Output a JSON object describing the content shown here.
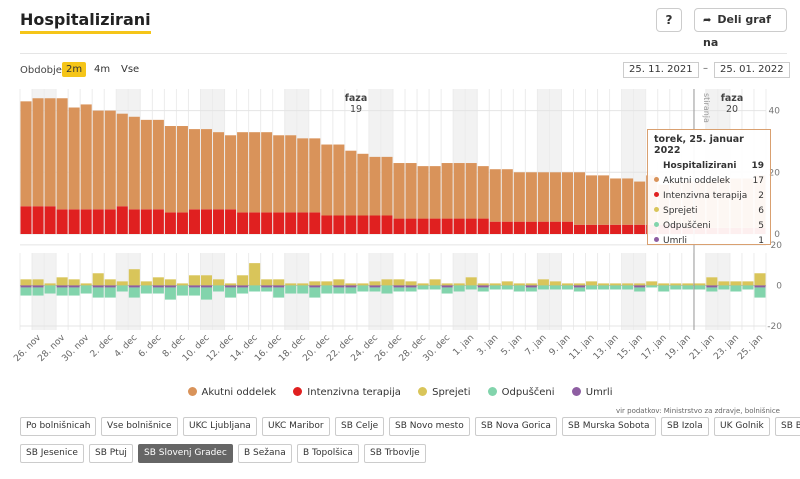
{
  "header": {
    "title": "Hospitalizirani",
    "help_label": "?",
    "share_label": "Deli graf na"
  },
  "controls": {
    "period_label": "Obdobje",
    "period_options": [
      "2m",
      "4m",
      "Vse"
    ],
    "active_period": "2m",
    "date_from": "25. 11. 2021",
    "date_separator": "–",
    "date_to": "25. 01. 2022"
  },
  "chart_data": {
    "type": "bar",
    "title": "Hospitalizirani",
    "dates": [
      "25. nov",
      "26. nov",
      "27. nov",
      "28. nov",
      "29. nov",
      "30. nov",
      "1. dec",
      "2. dec",
      "3. dec",
      "4. dec",
      "5. dec",
      "6. dec",
      "7. dec",
      "8. dec",
      "9. dec",
      "10. dec",
      "11. dec",
      "12. dec",
      "13. dec",
      "14. dec",
      "15. dec",
      "16. dec",
      "17. dec",
      "18. dec",
      "19. dec",
      "20. dec",
      "21. dec",
      "22. dec",
      "23. dec",
      "24. dec",
      "25. dec",
      "26. dec",
      "27. dec",
      "28. dec",
      "29. dec",
      "30. dec",
      "31. dec",
      "1. jan",
      "2. jan",
      "3. jan",
      "4. jan",
      "5. jan",
      "6. jan",
      "7. jan",
      "8. jan",
      "9. jan",
      "10. jan",
      "11. jan",
      "12. jan",
      "13. jan",
      "14. jan",
      "15. jan",
      "16. jan",
      "17. jan",
      "18. jan",
      "19. jan",
      "20. jan",
      "21. jan",
      "22. jan",
      "23. jan",
      "24. jan",
      "25. jan"
    ],
    "x_tick_labels": [
      "26. nov",
      "28. nov",
      "30. nov",
      "2. dec",
      "4. dec",
      "6. dec",
      "8. dec",
      "10. dec",
      "12. dec",
      "14. dec",
      "16. dec",
      "18. dec",
      "20. dec",
      "22. dec",
      "24. dec",
      "26. dec",
      "28. dec",
      "30. dec",
      "1. jan",
      "3. jan",
      "5. jan",
      "7. jan",
      "9. jan",
      "11. jan",
      "13. jan",
      "15. jan",
      "17. jan",
      "19. jan",
      "21. jan",
      "23. jan",
      "25. jan"
    ],
    "upper_panel": {
      "series": [
        {
          "name": "Intenzivna terapija",
          "color": "#e02020",
          "values": [
            9,
            9,
            9,
            8,
            8,
            8,
            8,
            8,
            9,
            8,
            8,
            8,
            7,
            7,
            8,
            8,
            8,
            8,
            7,
            7,
            7,
            7,
            7,
            7,
            7,
            6,
            6,
            6,
            6,
            6,
            6,
            5,
            5,
            5,
            5,
            5,
            5,
            5,
            5,
            4,
            4,
            4,
            4,
            4,
            4,
            4,
            3,
            3,
            3,
            3,
            3,
            3,
            3,
            3,
            3,
            2,
            2,
            2,
            2,
            2,
            2,
            2
          ]
        },
        {
          "name": "Akutni oddelek",
          "color": "#d9935a",
          "values": [
            34,
            35,
            35,
            36,
            33,
            34,
            32,
            32,
            30,
            30,
            29,
            29,
            28,
            28,
            26,
            26,
            25,
            24,
            26,
            26,
            26,
            25,
            25,
            24,
            24,
            23,
            23,
            21,
            20,
            19,
            19,
            18,
            18,
            17,
            17,
            18,
            18,
            18,
            17,
            17,
            17,
            16,
            16,
            16,
            16,
            16,
            17,
            16,
            16,
            15,
            15,
            14,
            16,
            13,
            14,
            15,
            15,
            15,
            16,
            16,
            16,
            17
          ]
        }
      ],
      "y_ticks": [
        0,
        20,
        40
      ],
      "ylim": [
        0,
        47
      ]
    },
    "lower_panel": {
      "series": [
        {
          "name": "Sprejeti",
          "color": "#d9c55a",
          "values": [
            3,
            3,
            1,
            4,
            3,
            1,
            6,
            3,
            2,
            8,
            2,
            4,
            3,
            1,
            5,
            5,
            3,
            1,
            5,
            11,
            3,
            3,
            1,
            1,
            2,
            2,
            3,
            1,
            1,
            2,
            3,
            3,
            2,
            1,
            3,
            1,
            1,
            4,
            1,
            1,
            2,
            1,
            1,
            3,
            2,
            1,
            1,
            2,
            1,
            1,
            1,
            1,
            2,
            1,
            1,
            1,
            1,
            4,
            2,
            2,
            2,
            6
          ]
        },
        {
          "name": "Odpuščeni",
          "color": "#82d4ac",
          "values": [
            -4,
            -4,
            -4,
            -4,
            -4,
            -4,
            -5,
            -5,
            -3,
            -5,
            -4,
            -3,
            -6,
            -5,
            -4,
            -6,
            -3,
            -5,
            -3,
            -3,
            -2,
            -5,
            -4,
            -4,
            -5,
            -4,
            -3,
            -3,
            -3,
            -2,
            -4,
            -2,
            -2,
            -2,
            -2,
            -3,
            -3,
            -2,
            -2,
            -2,
            -2,
            -3,
            -2,
            -2,
            -2,
            -2,
            -2,
            -2,
            -2,
            -2,
            -2,
            -2,
            -1,
            -3,
            -2,
            -2,
            -2,
            -2,
            -2,
            -3,
            -2,
            -5
          ]
        },
        {
          "name": "Umrli",
          "color": "#8e5ea2",
          "values": [
            -1,
            -1,
            0,
            -1,
            -1,
            0,
            -1,
            -1,
            0,
            -1,
            0,
            -1,
            -1,
            0,
            -1,
            -1,
            0,
            -1,
            -1,
            0,
            -1,
            -1,
            0,
            0,
            -1,
            0,
            -1,
            -1,
            0,
            -1,
            0,
            -1,
            -1,
            0,
            0,
            -1,
            0,
            0,
            -1,
            0,
            0,
            0,
            -1,
            0,
            0,
            0,
            -1,
            0,
            0,
            0,
            0,
            -1,
            0,
            0,
            0,
            0,
            0,
            -1,
            0,
            0,
            0,
            -1
          ]
        }
      ],
      "y_ticks": [
        20,
        0,
        -20
      ],
      "ylim": [
        -22,
        16
      ]
    },
    "phase_labels": [
      {
        "line1": "faza",
        "line2": "19"
      },
      {
        "line1": "faza",
        "line2": "20"
      }
    ],
    "marker_label": "stiranja",
    "legend": [
      "Akutni oddelek",
      "Intenzivna terapija",
      "Sprejeti",
      "Odpuščeni",
      "Umrli"
    ]
  },
  "tooltip": {
    "date": "torek, 25. januar 2022",
    "rows": [
      {
        "label": "Hospitalizirani",
        "value": "19",
        "color": "",
        "bold": true
      },
      {
        "label": "Akutni oddelek",
        "value": "17",
        "color": "#d9935a",
        "bold": false
      },
      {
        "label": "Intenzivna terapija",
        "value": "2",
        "color": "#e02020",
        "bold": false
      },
      {
        "label": "Sprejeti",
        "value": "6",
        "color": "#d9c55a",
        "bold": false
      },
      {
        "label": "Odpuščeni",
        "value": "5",
        "color": "#82d4ac",
        "bold": false
      },
      {
        "label": "Umrli",
        "value": "1",
        "color": "#8e5ea2",
        "bold": false
      }
    ]
  },
  "legend": [
    {
      "label": "Akutni oddelek",
      "color": "#d9935a"
    },
    {
      "label": "Intenzivna terapija",
      "color": "#e02020"
    },
    {
      "label": "Sprejeti",
      "color": "#d9c55a"
    },
    {
      "label": "Odpuščeni",
      "color": "#82d4ac"
    },
    {
      "label": "Umrli",
      "color": "#8e5ea2"
    }
  ],
  "source_text": "vir podatkov: Ministrstvo za zdravje, bolnišnice",
  "hospitals": {
    "row1": [
      "Po bolnišnicah",
      "Vse bolnišnice",
      "UKC Ljubljana",
      "UKC Maribor",
      "SB Celje",
      "SB Novo mesto",
      "SB Nova Gorica",
      "SB Murska Sobota",
      "SB Izola",
      "UK Golnik",
      "SB Brežice"
    ],
    "row2": [
      "SB Jesenice",
      "SB Ptuj",
      "SB Slovenj Gradec",
      "B Sežana",
      "B Topolšica",
      "SB Trbovlje"
    ],
    "active": "SB Slovenj Gradec"
  }
}
